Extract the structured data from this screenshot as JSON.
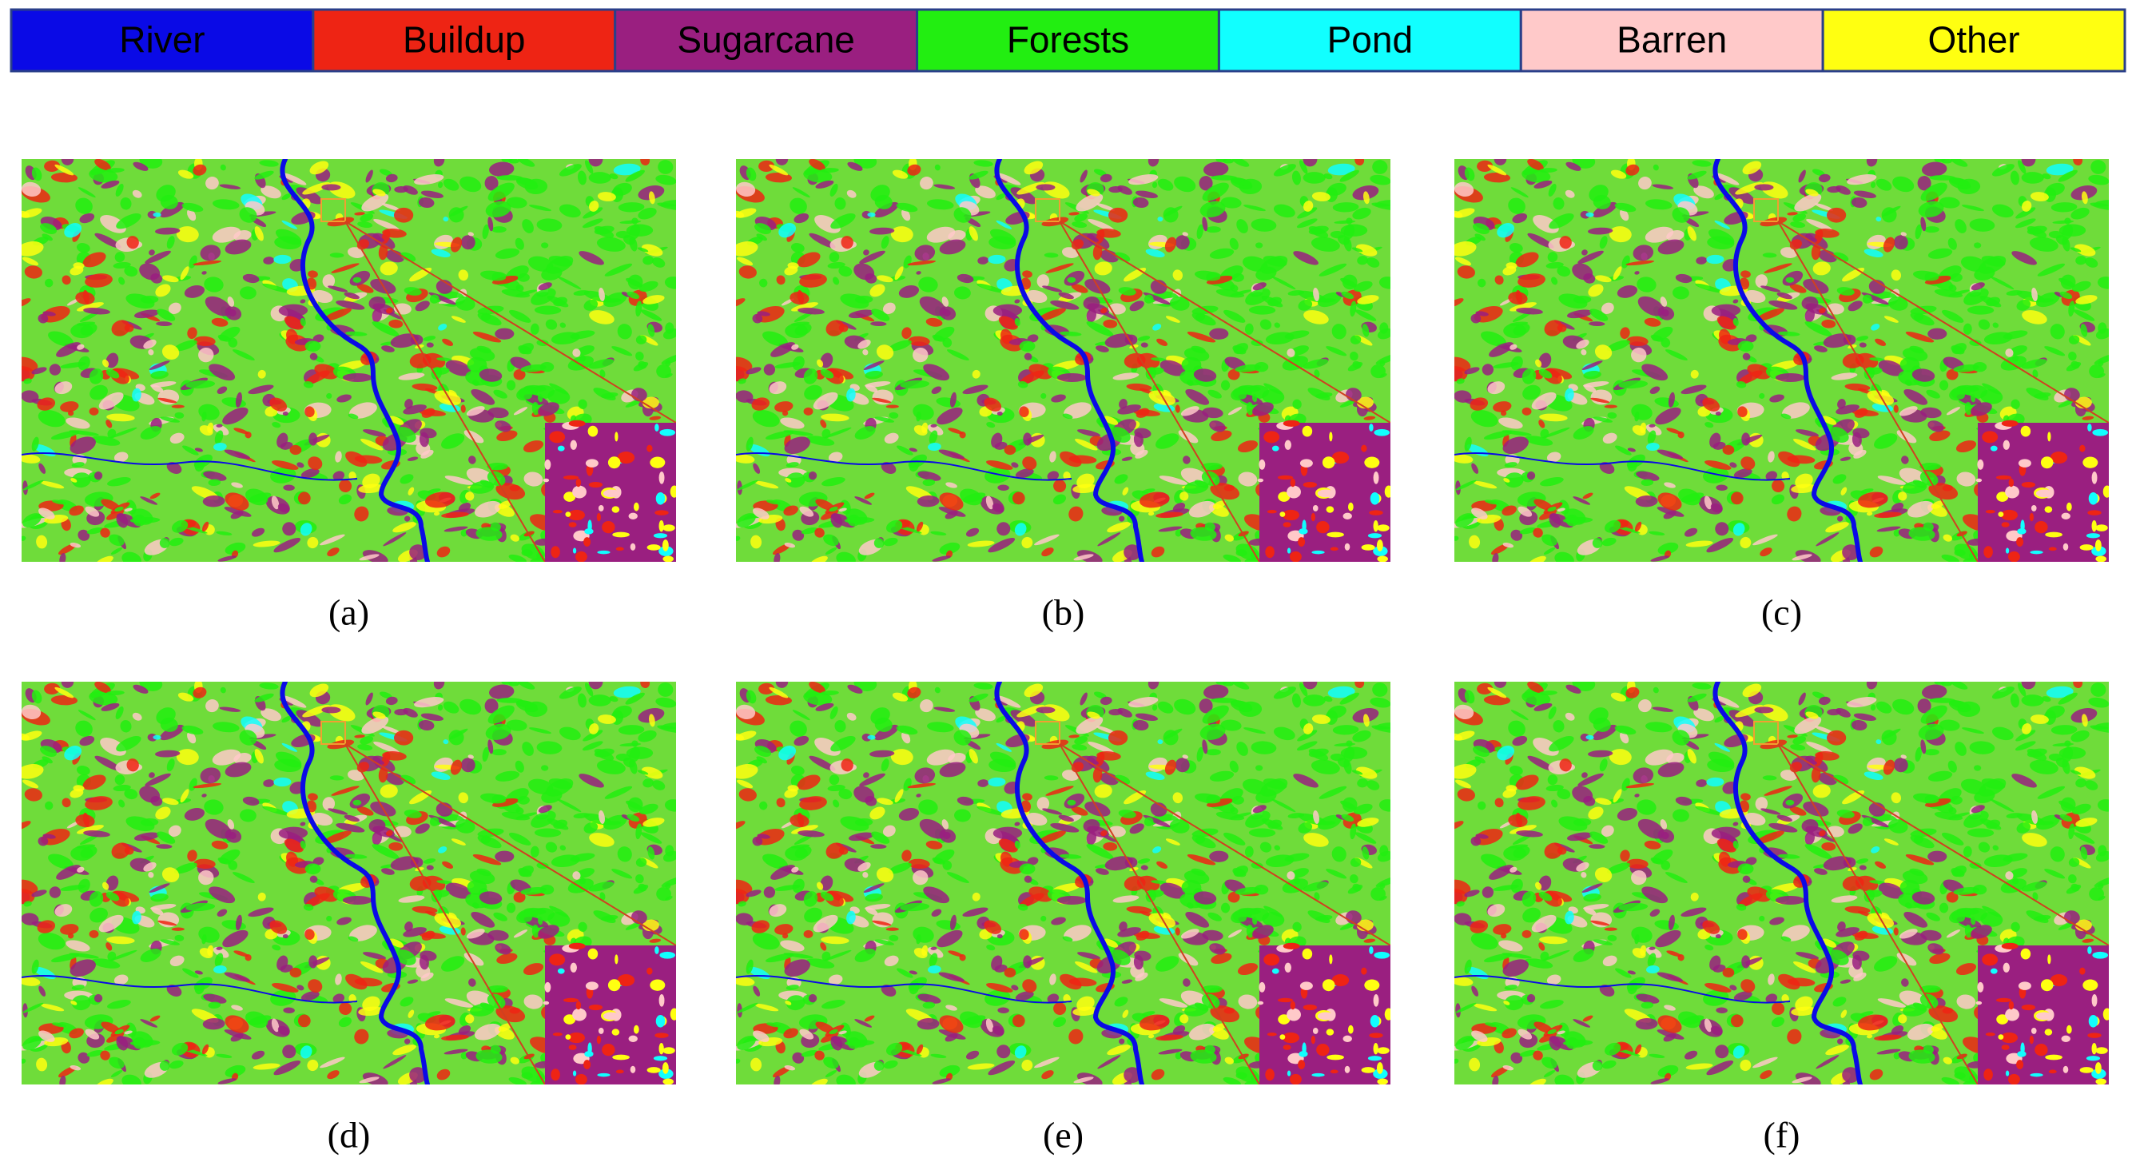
{
  "legend": {
    "items": [
      {
        "label": "River",
        "color": "#0a0ae6"
      },
      {
        "label": "Buildup",
        "color": "#ee2414"
      },
      {
        "label": "Sugarcane",
        "color": "#9a1f80"
      },
      {
        "label": "Forests",
        "color": "#22ee11"
      },
      {
        "label": "Pond",
        "color": "#11ffff"
      },
      {
        "label": "Barren",
        "color": "#ffc9c9"
      },
      {
        "label": "Other",
        "color": "#ffff11"
      }
    ]
  },
  "panels": [
    {
      "label": "(a)"
    },
    {
      "label": "(b)"
    },
    {
      "label": "(c)"
    },
    {
      "label": "(d)"
    },
    {
      "label": "(e)"
    },
    {
      "label": "(f)"
    }
  ]
}
